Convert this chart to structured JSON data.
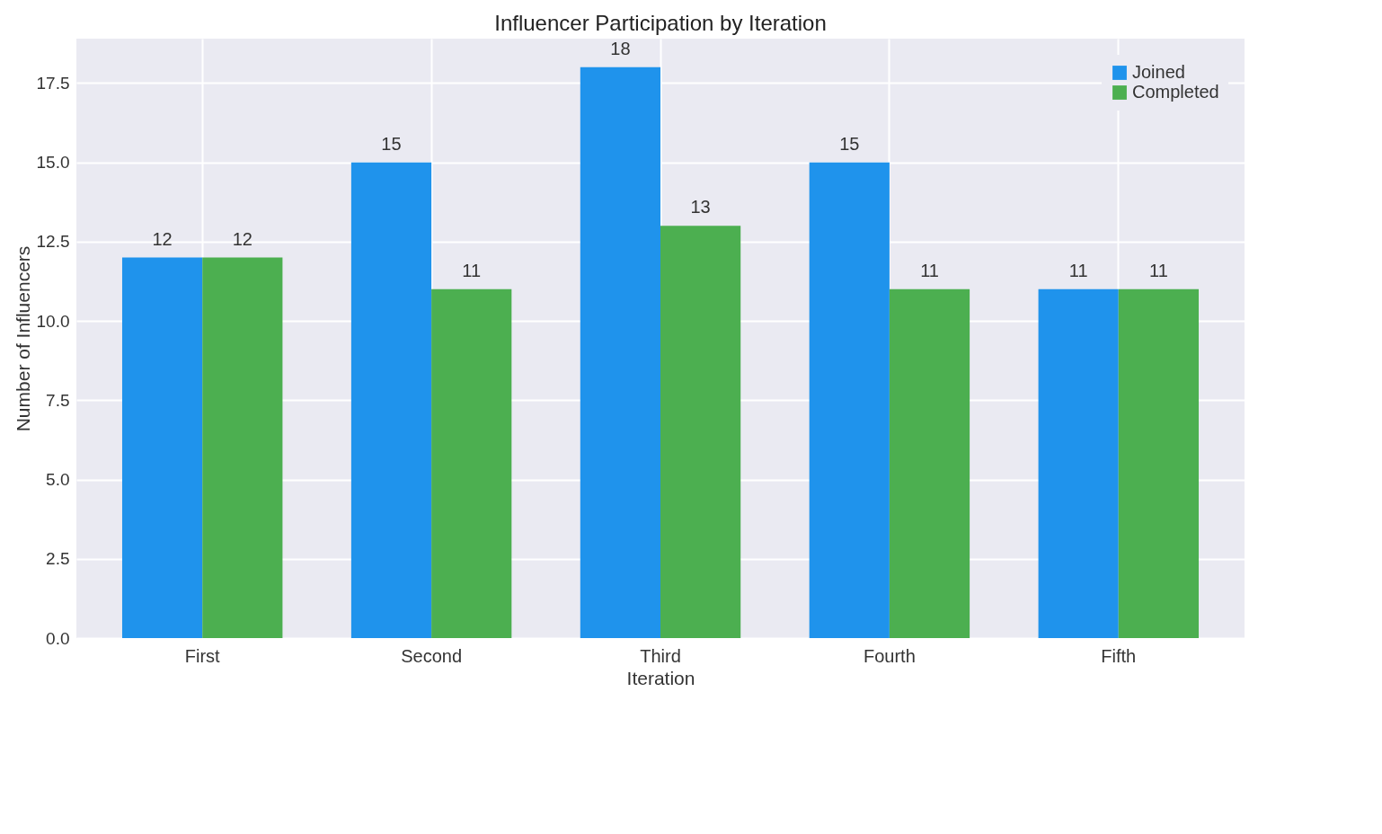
{
  "chart_data": {
    "type": "bar",
    "title": "Influencer Participation by Iteration",
    "xlabel": "Iteration",
    "ylabel": "Number of Influencers",
    "categories": [
      "First",
      "Second",
      "Third",
      "Fourth",
      "Fifth"
    ],
    "series": [
      {
        "name": "Joined",
        "color": "#1f93ec",
        "values": [
          12,
          15,
          18,
          15,
          11
        ]
      },
      {
        "name": "Completed",
        "color": "#4caf50",
        "values": [
          12,
          11,
          13,
          11,
          11
        ]
      }
    ],
    "ylim": [
      0,
      18.9
    ],
    "yticks": [
      {
        "value": 0,
        "label": "0.0"
      },
      {
        "value": 2.5,
        "label": "2.5"
      },
      {
        "value": 5,
        "label": "5.0"
      },
      {
        "value": 7.5,
        "label": "7.5"
      },
      {
        "value": 10,
        "label": "10.0"
      },
      {
        "value": 12.5,
        "label": "12.5"
      },
      {
        "value": 15,
        "label": "15.0"
      },
      {
        "value": 17.5,
        "label": "17.5"
      }
    ],
    "grid": true,
    "legend": "top right",
    "data_labels": true
  }
}
